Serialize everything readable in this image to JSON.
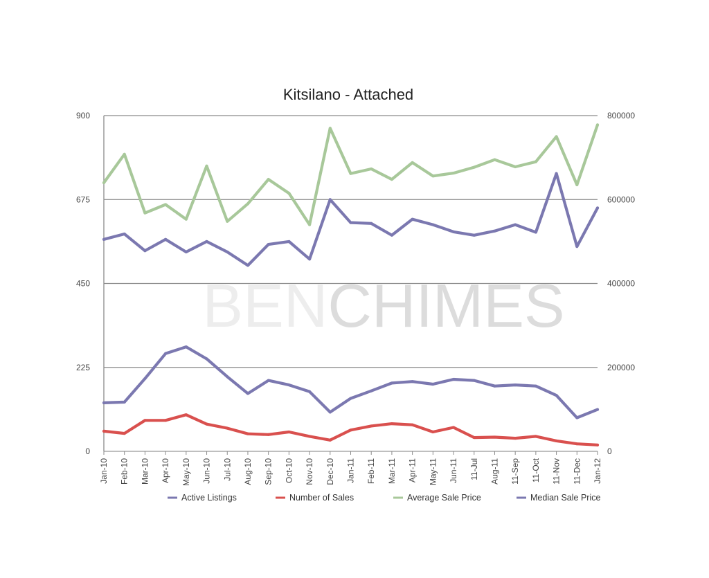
{
  "chart_data": {
    "type": "line",
    "title": "Kitsilano - Attached",
    "watermark": {
      "part1": "BEN",
      "part2": "CHIMES"
    },
    "categories": [
      "Jan-10",
      "Feb-10",
      "Mar-10",
      "Apr-10",
      "May-10",
      "Jun-10",
      "Jul-10",
      "Aug-10",
      "Sep-10",
      "Oct-10",
      "Nov-10",
      "Dec-10",
      "Jan-11",
      "Feb-11",
      "Mar-11",
      "Apr-11",
      "May-11",
      "Jun-11",
      "11-Jul",
      "Aug-11",
      "11-Sep",
      "11-Oct",
      "11-Nov",
      "11-Dec",
      "Jan-12"
    ],
    "y_left": {
      "min": 0,
      "max": 900,
      "ticks": [
        "0",
        "225",
        "450",
        "675",
        "900"
      ]
    },
    "y_right": {
      "min": 0,
      "max": 800000,
      "ticks": [
        "0",
        "200000",
        "400000",
        "600000",
        "800000"
      ]
    },
    "grid": true,
    "legend_position": "bottom",
    "series": [
      {
        "name": "Active Listings",
        "axis": "left",
        "color": "#7b78b0",
        "values": [
          130,
          132,
          195,
          262,
          280,
          248,
          200,
          155,
          190,
          178,
          160,
          105,
          142,
          162,
          183,
          187,
          180,
          193,
          190,
          175,
          178,
          175,
          150,
          90,
          112
        ]
      },
      {
        "name": "Number of Sales",
        "axis": "left",
        "color": "#d9504e",
        "values": [
          54,
          48,
          83,
          83,
          98,
          73,
          62,
          47,
          45,
          52,
          40,
          30,
          57,
          68,
          74,
          71,
          52,
          64,
          37,
          38,
          35,
          40,
          28,
          20,
          17
        ]
      },
      {
        "name": "Average Sale Price",
        "axis": "right",
        "color": "#a8c89a",
        "values": [
          640000,
          708000,
          568000,
          588000,
          553000,
          680000,
          548000,
          590000,
          648000,
          615000,
          540000,
          770000,
          662000,
          673000,
          648000,
          688000,
          656000,
          663000,
          677000,
          695000,
          678000,
          690000,
          750000,
          635000,
          778000
        ]
      },
      {
        "name": "Median Sale Price",
        "axis": "right",
        "color": "#7b78b0",
        "values": [
          505000,
          518000,
          478000,
          505000,
          475000,
          500000,
          475000,
          443000,
          493000,
          500000,
          458000,
          600000,
          545000,
          543000,
          515000,
          553000,
          540000,
          523000,
          515000,
          525000,
          540000,
          522000,
          662000,
          488000,
          580000
        ]
      }
    ]
  }
}
